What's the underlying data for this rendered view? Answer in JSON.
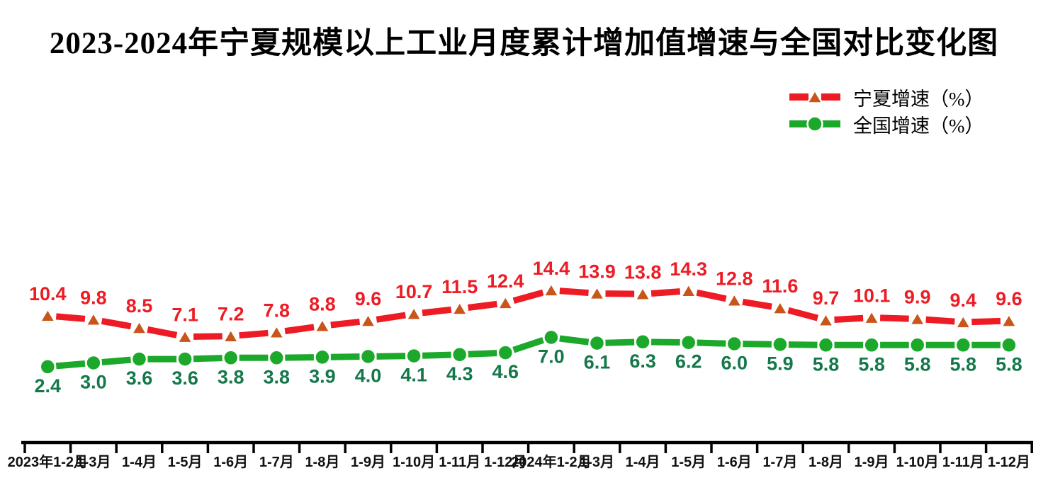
{
  "title": "2023-2024年宁夏规模以上工业月度累计增加值增速与全国对比变化图",
  "chart_data": {
    "type": "line",
    "title": "2023-2024年宁夏规模以上工业月度累计增加值增速与全国对比变化图",
    "xlabel": "",
    "ylabel": "",
    "grid": false,
    "value_axis_visible": false,
    "legend_position": "top-right",
    "ylim": [
      0,
      16
    ],
    "categories": [
      "2023年1-2月",
      "1-3月",
      "1-4月",
      "1-5月",
      "1-6月",
      "1-7月",
      "1-8月",
      "1-9月",
      "1-10月",
      "1-11月",
      "1-12月",
      "2024年1-2月",
      "1-3月",
      "1-4月",
      "1-5月",
      "1-6月",
      "1-7月",
      "1-8月",
      "1-9月",
      "1-10月",
      "1-11月",
      "1-12月"
    ],
    "series": [
      {
        "name": "宁夏增速（%）",
        "values": [
          10.4,
          9.8,
          8.5,
          7.1,
          7.2,
          7.8,
          8.8,
          9.6,
          10.7,
          11.5,
          12.4,
          14.4,
          13.9,
          13.8,
          14.3,
          12.8,
          11.6,
          9.7,
          10.1,
          9.9,
          9.4,
          9.6
        ],
        "line_color": "#ED1C24",
        "marker": "triangle",
        "marker_color": "#C8551A",
        "label_color": "#ED1C24",
        "label_position": "above"
      },
      {
        "name": "全国增速（%）",
        "values": [
          2.4,
          3.0,
          3.6,
          3.6,
          3.8,
          3.8,
          3.9,
          4.0,
          4.1,
          4.3,
          4.6,
          7.0,
          6.1,
          6.3,
          6.2,
          6.0,
          5.9,
          5.8,
          5.8,
          5.8,
          5.8,
          5.8
        ],
        "line_color": "#1CA82A",
        "marker": "circle",
        "marker_color": "#1CA82A",
        "label_color": "#14784A",
        "label_position": "below"
      }
    ],
    "axis_color": "#000000"
  }
}
